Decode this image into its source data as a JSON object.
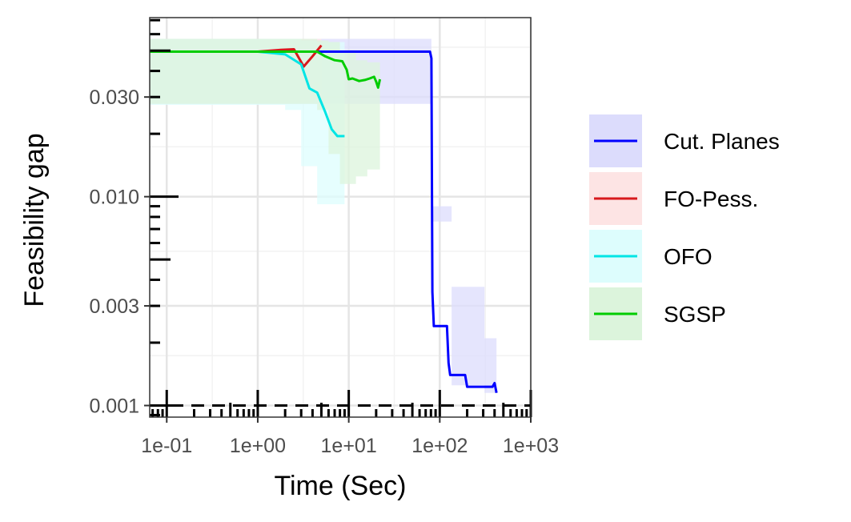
{
  "chart_data": {
    "type": "line",
    "xlabel": "Time (Sec)",
    "ylabel": "Feasibility gap",
    "x_scale": "log10",
    "y_scale": "log10",
    "xlim": [
      0.065,
      1000
    ],
    "ylim": [
      0.00088,
      0.072
    ],
    "x_ticks": [
      {
        "value": 0.1,
        "label": "1e-01"
      },
      {
        "value": 1,
        "label": "1e+00"
      },
      {
        "value": 10,
        "label": "1e+01"
      },
      {
        "value": 100,
        "label": "1e+02"
      },
      {
        "value": 1000,
        "label": "1e+03"
      }
    ],
    "y_ticks": [
      {
        "value": 0.001,
        "label": "0.001"
      },
      {
        "value": 0.003,
        "label": "0.003"
      },
      {
        "value": 0.01,
        "label": "0.010"
      },
      {
        "value": 0.03,
        "label": "0.030"
      }
    ],
    "reference_line": {
      "y": 0.001,
      "style": "dashed",
      "color": "#000000"
    },
    "grid": true,
    "legend_position": "right",
    "series": [
      {
        "name": "Cut. Planes",
        "color": "#0000ff",
        "fill": "#dcdcfc",
        "points": [
          [
            0.065,
            0.0495
          ],
          [
            2,
            0.0495
          ],
          [
            30,
            0.0495
          ],
          [
            78,
            0.0495
          ],
          [
            81,
            0.046
          ],
          [
            83,
            0.0035
          ],
          [
            86,
            0.0024
          ],
          [
            120,
            0.0024
          ],
          [
            125,
            0.0016
          ],
          [
            130,
            0.0014
          ],
          [
            190,
            0.0014
          ],
          [
            200,
            0.00123
          ],
          [
            380,
            0.00123
          ],
          [
            400,
            0.00128
          ],
          [
            420,
            0.00115
          ]
        ],
        "band": [
          [
            0.065,
            0.0278,
            0.057
          ],
          [
            78,
            0.0278,
            0.057
          ],
          [
            81,
            0.0076,
            0.009
          ],
          [
            130,
            0.0076,
            0.009
          ],
          [
            135,
            0.00125,
            0.0037
          ],
          [
            300,
            0.00125,
            0.0037
          ],
          [
            310,
            0.00115,
            0.0021
          ],
          [
            420,
            0.00115,
            0.0021
          ]
        ]
      },
      {
        "name": "FO-Pess.",
        "color": "#d7191c",
        "fill": "#fde4e4",
        "points": [
          [
            0.065,
            0.0495
          ],
          [
            1,
            0.0495
          ],
          [
            1.8,
            0.0505
          ],
          [
            2.5,
            0.0508
          ],
          [
            3.2,
            0.042
          ],
          [
            4,
            0.047
          ],
          [
            5,
            0.053
          ]
        ],
        "band": [
          [
            0.065,
            0.028,
            0.057
          ],
          [
            3.2,
            0.028,
            0.057
          ],
          [
            4,
            0.029,
            0.057
          ],
          [
            5,
            0.03,
            0.057
          ]
        ]
      },
      {
        "name": "OFO",
        "color": "#00e5e5",
        "fill": "#ddfdfd",
        "points": [
          [
            0.065,
            0.0495
          ],
          [
            1,
            0.0495
          ],
          [
            2,
            0.048
          ],
          [
            3,
            0.043
          ],
          [
            3.7,
            0.033
          ],
          [
            4.5,
            0.0315
          ],
          [
            5.5,
            0.0255
          ],
          [
            6.5,
            0.021
          ],
          [
            7.5,
            0.0195
          ],
          [
            9,
            0.0195
          ]
        ],
        "band": [
          [
            0.065,
            0.0275,
            0.057
          ],
          [
            1,
            0.0275,
            0.057
          ],
          [
            2,
            0.026,
            0.057
          ],
          [
            3,
            0.014,
            0.056
          ],
          [
            4.5,
            0.0092,
            0.055
          ],
          [
            9,
            0.0092,
            0.05
          ]
        ]
      },
      {
        "name": "SGSP",
        "color": "#00cc00",
        "fill": "#dcf4dc",
        "points": [
          [
            0.065,
            0.0495
          ],
          [
            2,
            0.0495
          ],
          [
            4.5,
            0.0495
          ],
          [
            5.5,
            0.047
          ],
          [
            7,
            0.045
          ],
          [
            8.5,
            0.0445
          ],
          [
            9.5,
            0.0405
          ],
          [
            10,
            0.0365
          ],
          [
            11,
            0.0368
          ],
          [
            13,
            0.0358
          ],
          [
            15,
            0.0362
          ],
          [
            17,
            0.0368
          ],
          [
            19,
            0.0375
          ],
          [
            20,
            0.0355
          ],
          [
            21,
            0.0333
          ],
          [
            22,
            0.0365
          ]
        ],
        "band": [
          [
            0.065,
            0.0278,
            0.057
          ],
          [
            2,
            0.0278,
            0.057
          ],
          [
            4.5,
            0.026,
            0.056
          ],
          [
            6,
            0.016,
            0.055
          ],
          [
            8,
            0.0115,
            0.05
          ],
          [
            12,
            0.0125,
            0.045
          ],
          [
            16,
            0.0135,
            0.044
          ],
          [
            22,
            0.014,
            0.044
          ]
        ]
      }
    ]
  }
}
